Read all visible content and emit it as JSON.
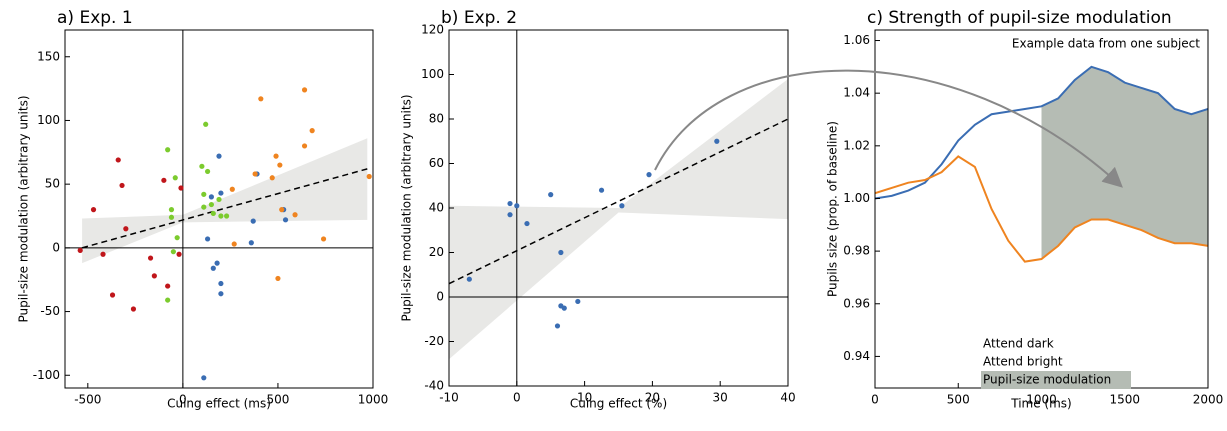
{
  "chart_data": [
    {
      "type": "scatter",
      "title": "a) Exp. 1",
      "xlabel": "Cuing effect (ms)",
      "ylabel": "Pupil-size modulation (arbitrary units)",
      "xlim": [
        -620,
        1000
      ],
      "ylim": [
        -110,
        171
      ],
      "xticks": [
        -500,
        0,
        500,
        1000
      ],
      "yticks": [
        -100,
        -50,
        0,
        50,
        100,
        150
      ],
      "zero_lines": true,
      "series": [
        {
          "color": "#c0161b",
          "x": [
            -540,
            -470,
            -420,
            -370,
            -340,
            -320,
            -300,
            -260,
            -170,
            -150,
            -100,
            -80,
            -20,
            -10
          ],
          "values": [
            -2,
            30,
            -5,
            -37,
            69,
            49,
            15,
            -48,
            -8,
            -22,
            53,
            -30,
            -5,
            47
          ]
        },
        {
          "color": "#7ccb2e",
          "x": [
            -80,
            -80,
            -60,
            -60,
            -50,
            -40,
            -30,
            120,
            100,
            110,
            130,
            110,
            160,
            190,
            200,
            230,
            150
          ],
          "values": [
            77,
            -41,
            30,
            24,
            -3,
            55,
            8,
            97,
            64,
            42,
            60,
            32,
            27,
            38,
            25,
            25,
            34
          ]
        },
        {
          "color": "#3a6db3",
          "x": [
            110,
            130,
            150,
            160,
            190,
            200,
            200,
            200,
            180,
            370,
            360,
            390,
            540,
            530
          ],
          "values": [
            -102,
            7,
            40,
            -16,
            72,
            43,
            -28,
            -36,
            -12,
            21,
            4,
            58,
            22,
            30
          ]
        },
        {
          "color": "#ef8420",
          "x": [
            260,
            270,
            380,
            410,
            470,
            490,
            500,
            510,
            590,
            640,
            640,
            680,
            740,
            980,
            520
          ],
          "values": [
            46,
            3,
            58,
            117,
            55,
            72,
            -24,
            65,
            26,
            124,
            80,
            92,
            7,
            56,
            30
          ]
        }
      ],
      "fit": {
        "x": [
          -530,
          970
        ],
        "y": [
          0,
          62
        ]
      },
      "band": {
        "x": [
          -530,
          0,
          970
        ],
        "lower": [
          -12,
          20,
          22
        ],
        "upper": [
          23,
          26,
          86
        ]
      }
    },
    {
      "type": "scatter",
      "title": "b) Exp. 2",
      "xlabel": "Cuing effect (%)",
      "ylabel": "Pupil-size modulation (arbitrary units)",
      "xlim": [
        -10,
        40
      ],
      "ylim": [
        -40,
        120
      ],
      "xticks": [
        -10,
        0,
        10,
        20,
        30,
        40
      ],
      "yticks": [
        -40,
        -20,
        0,
        20,
        40,
        60,
        80,
        100,
        120
      ],
      "zero_lines": true,
      "series": [
        {
          "color": "#3a6db3",
          "x": [
            -7,
            -1,
            -1,
            0,
            1.5,
            5,
            6,
            6.5,
            6.5,
            7,
            9,
            12.5,
            15.5,
            19.5,
            29.5
          ],
          "values": [
            8,
            37,
            42,
            41,
            33,
            46,
            -13,
            -4,
            20,
            -5,
            -2,
            48,
            41,
            55,
            70
          ]
        }
      ],
      "fit": {
        "x": [
          -10,
          40
        ],
        "y": [
          6,
          80
        ]
      },
      "band": {
        "x": [
          -10,
          15,
          40
        ],
        "lower": [
          -28,
          38,
          35
        ],
        "upper": [
          41,
          40,
          98
        ]
      }
    },
    {
      "type": "line",
      "title": "c) Strength of pupil-size modulation",
      "xlabel": "Time (ms)",
      "ylabel": "Pupils size (prop. of baseline)",
      "annotation": "Example data from one subject",
      "xlim": [
        0,
        2000
      ],
      "ylim": [
        0.928,
        1.064
      ],
      "xticks": [
        0,
        500,
        1000,
        1500,
        2000
      ],
      "yticks": [
        0.94,
        0.96,
        0.98,
        {
          "value": 1.0,
          "label": "1.00"
        },
        1.02,
        1.04,
        1.06
      ],
      "x": [
        0,
        100,
        200,
        300,
        400,
        500,
        600,
        700,
        800,
        900,
        1000,
        1100,
        1200,
        1300,
        1400,
        1500,
        1600,
        1700,
        1800,
        1900,
        2000
      ],
      "series": [
        {
          "name": "Attend dark",
          "color": "#3a6db3",
          "values": [
            1.0,
            1.001,
            1.003,
            1.006,
            1.013,
            1.022,
            1.028,
            1.032,
            1.033,
            1.034,
            1.035,
            1.038,
            1.045,
            1.05,
            1.048,
            1.044,
            1.042,
            1.04,
            1.034,
            1.032,
            1.034
          ]
        },
        {
          "name": "Attend bright",
          "color": "#ef8420",
          "values": [
            1.002,
            1.004,
            1.006,
            1.007,
            1.01,
            1.016,
            1.012,
            0.996,
            0.984,
            0.976,
            0.977,
            0.982,
            0.989,
            0.992,
            0.992,
            0.99,
            0.988,
            0.985,
            0.983,
            0.983,
            0.982
          ]
        }
      ],
      "shade": {
        "name": "Pupil-size modulation",
        "color": "#b5bcb4",
        "from": 1000
      }
    }
  ]
}
